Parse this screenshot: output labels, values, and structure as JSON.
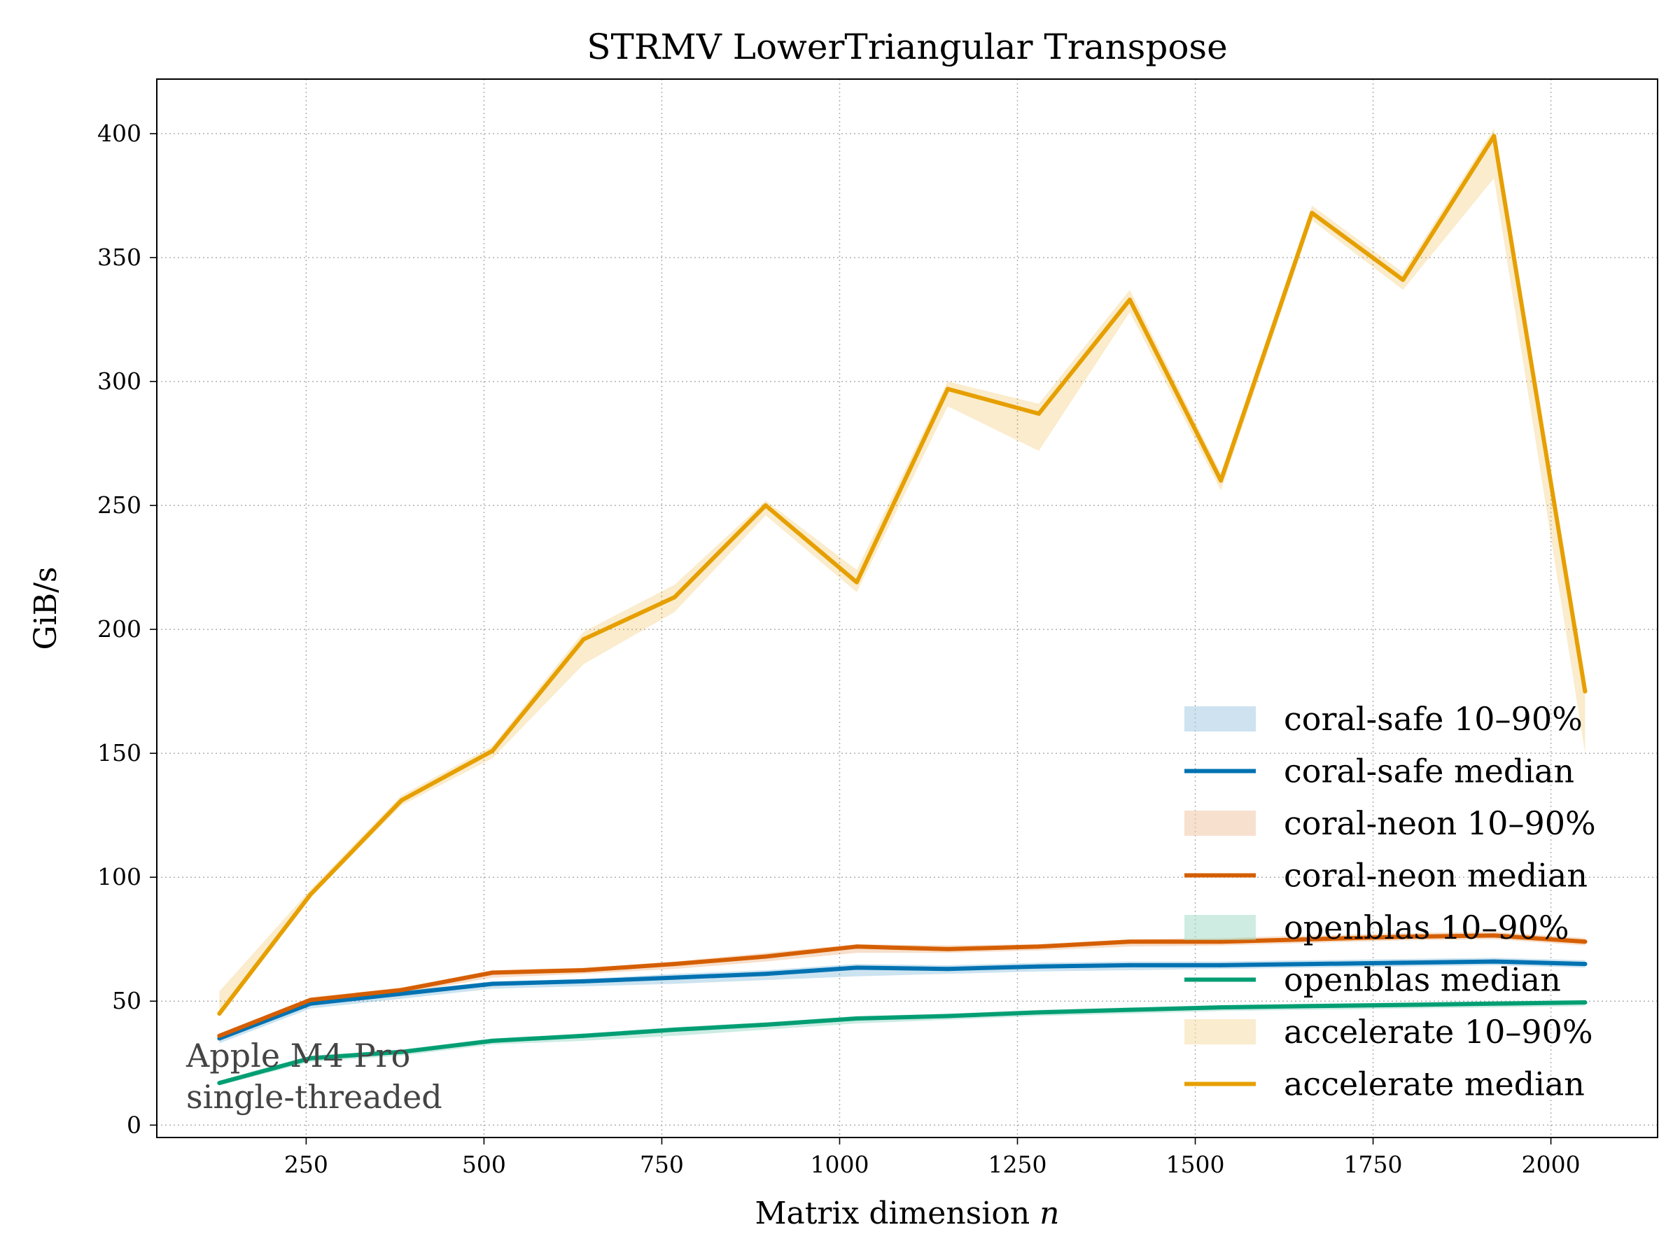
{
  "chart_data": {
    "type": "line",
    "title": "STRMV  LowerTriangular  Transpose",
    "xlabel": "Matrix dimension",
    "xlabel_var": "n",
    "ylabel": "GiB/s",
    "xlim": [
      40,
      2150
    ],
    "ylim": [
      -5,
      422
    ],
    "xticks": [
      250,
      500,
      750,
      1000,
      1250,
      1500,
      1750,
      2000
    ],
    "yticks": [
      0,
      50,
      100,
      150,
      200,
      250,
      300,
      350,
      400
    ],
    "grid": true,
    "legend_position": "lower-right",
    "annotation": [
      "Apple M4 Pro",
      "single-threaded"
    ],
    "x": [
      128,
      256,
      384,
      512,
      640,
      768,
      896,
      1024,
      1152,
      1280,
      1408,
      1536,
      1664,
      1792,
      1920,
      2048
    ],
    "series": [
      {
        "name": "coral-safe",
        "color": "#0072b2",
        "median": [
          35,
          49,
          53,
          57,
          58,
          59.5,
          61,
          63.5,
          63,
          64,
          64.5,
          64.5,
          65,
          65.5,
          66,
          65
        ],
        "p10": [
          33,
          47,
          51,
          55,
          56,
          57,
          58.5,
          60,
          61,
          62,
          62.5,
          63,
          63.5,
          64,
          64.5,
          63.5
        ],
        "p90": [
          36,
          50,
          54,
          58,
          59,
          61,
          62.5,
          65,
          64.5,
          65.5,
          66,
          66,
          66.5,
          67,
          67.5,
          66.5
        ]
      },
      {
        "name": "coral-neon",
        "color": "#d55e00",
        "median": [
          36,
          50.5,
          54.5,
          61.5,
          62.5,
          65,
          68,
          72,
          71,
          72,
          74,
          74,
          75,
          76,
          76.5,
          74
        ],
        "p10": [
          34,
          49,
          53,
          59.5,
          61,
          63,
          66,
          69.5,
          69.5,
          70.5,
          72,
          72.5,
          73.5,
          74.5,
          75,
          72.5
        ],
        "p90": [
          37,
          51.5,
          55.5,
          62.5,
          63.5,
          66,
          69.5,
          73,
          72.5,
          73,
          75,
          75.5,
          76.5,
          77.5,
          78,
          75.5
        ]
      },
      {
        "name": "openblas",
        "color": "#009e73",
        "median": [
          17,
          27,
          29.5,
          34,
          36,
          38.5,
          40.5,
          43,
          44,
          45.5,
          46.5,
          47.5,
          48,
          48.5,
          49,
          49.5
        ],
        "p10": [
          16,
          25.5,
          28,
          32.5,
          34,
          36,
          38.5,
          41,
          42.5,
          44,
          45,
          46,
          46.5,
          47,
          47.5,
          48
        ],
        "p90": [
          18,
          28,
          30.5,
          35,
          37,
          39.5,
          41.5,
          44,
          45,
          46.5,
          47.5,
          48.5,
          49,
          49.5,
          50,
          50.5
        ]
      },
      {
        "name": "accelerate",
        "color": "#e69f00",
        "median": [
          45,
          93,
          131,
          151,
          196,
          213,
          250,
          219,
          297,
          287,
          333,
          260,
          368,
          341,
          399,
          175
        ],
        "p10": [
          44,
          92,
          129,
          148,
          186,
          207,
          246,
          215,
          290,
          272,
          328,
          256,
          365,
          337,
          382,
          150
        ],
        "p90": [
          54,
          95,
          133,
          153,
          199,
          218,
          252,
          224,
          300,
          291,
          337,
          263,
          371,
          344,
          402,
          180
        ]
      }
    ],
    "legend": [
      {
        "label": "coral-safe 10–90%",
        "color": "#a6cbe3",
        "kind": "band"
      },
      {
        "label": "coral-safe median",
        "color": "#0072b2",
        "kind": "line"
      },
      {
        "label": "coral-neon 10–90%",
        "color": "#f2c7a8",
        "kind": "band"
      },
      {
        "label": "coral-neon median",
        "color": "#d55e00",
        "kind": "line"
      },
      {
        "label": "openblas 10–90%",
        "color": "#a5dcc9",
        "kind": "band"
      },
      {
        "label": "openblas median",
        "color": "#009e73",
        "kind": "line"
      },
      {
        "label": "accelerate 10–90%",
        "color": "#f6dca6",
        "kind": "band"
      },
      {
        "label": "accelerate median",
        "color": "#e69f00",
        "kind": "line"
      }
    ]
  }
}
